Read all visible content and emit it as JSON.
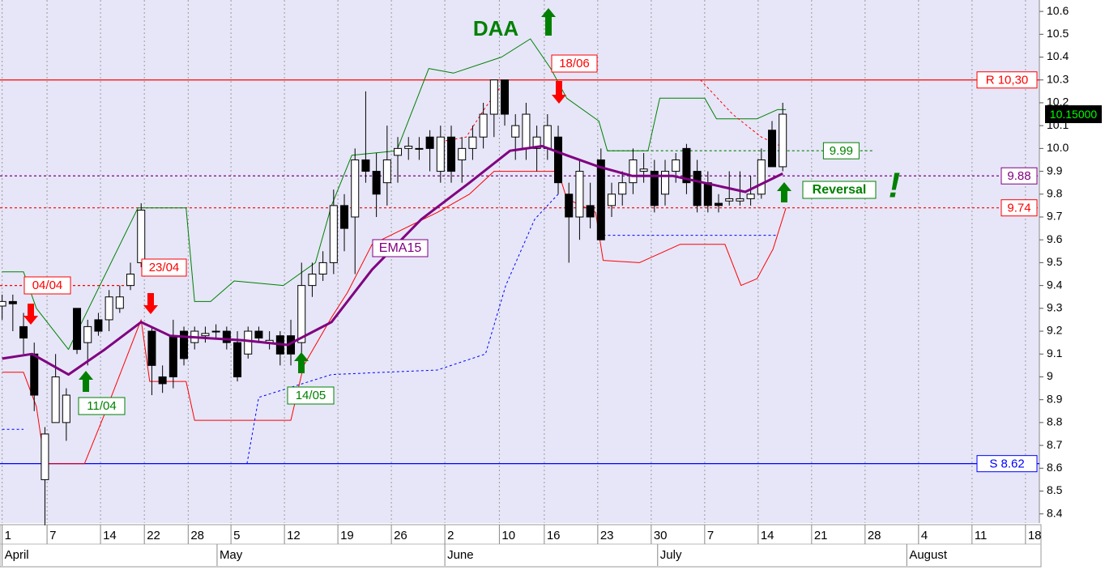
{
  "chart_data": {
    "type": "candlestick",
    "xlim": [
      -0.2,
      97
    ],
    "ylim": [
      8.36,
      10.65
    ],
    "grid": true,
    "xticks": [
      {
        "value": 0,
        "label": "1"
      },
      {
        "value": 4.2,
        "label": "7"
      },
      {
        "value": 9.2,
        "label": "14"
      },
      {
        "value": 13.3,
        "label": "22"
      },
      {
        "value": 17.4,
        "label": "28"
      },
      {
        "value": 21.4,
        "label": "5"
      },
      {
        "value": 26.4,
        "label": "12"
      },
      {
        "value": 31.4,
        "label": "19"
      },
      {
        "value": 36.4,
        "label": "26"
      },
      {
        "value": 41.4,
        "label": "2"
      },
      {
        "value": 46.5,
        "label": "10"
      },
      {
        "value": 50.7,
        "label": "16"
      },
      {
        "value": 55.7,
        "label": "23"
      },
      {
        "value": 60.7,
        "label": "30"
      },
      {
        "value": 65.7,
        "label": "7"
      },
      {
        "value": 70.7,
        "label": "14"
      },
      {
        "value": 75.7,
        "label": "21"
      },
      {
        "value": 80.7,
        "label": "28"
      },
      {
        "value": 85.7,
        "label": "4"
      },
      {
        "value": 90.7,
        "label": "11"
      },
      {
        "value": 95.7,
        "label": "18"
      }
    ],
    "months": [
      {
        "value": 0,
        "label": "April"
      },
      {
        "value": 20.1,
        "label": "May"
      },
      {
        "value": 41.4,
        "label": "June"
      },
      {
        "value": 61.3,
        "label": "July"
      },
      {
        "value": 84.6,
        "label": "August"
      }
    ],
    "yticks": [
      8.4,
      8.5,
      8.6,
      8.7,
      8.8,
      8.9,
      9.0,
      9.1,
      9.2,
      9.3,
      9.4,
      9.5,
      9.6,
      9.7,
      9.8,
      9.9,
      {
        "value": 10,
        "label": "10.0"
      },
      10.1,
      10.2,
      10.3,
      10.4,
      10.5,
      10.6
    ],
    "candles": {
      "up_color": "#ffffff",
      "down_color": "#000000",
      "x": [
        0,
        1,
        2,
        3,
        4,
        5,
        6,
        7,
        8,
        9,
        10,
        11,
        12,
        13,
        14,
        15,
        16,
        17,
        18,
        19,
        20,
        21,
        22,
        23,
        24,
        25,
        26,
        27,
        28,
        29,
        30,
        31,
        32,
        33,
        34,
        35,
        36,
        37,
        38,
        39,
        40,
        41,
        42,
        43,
        44,
        45,
        46,
        47,
        48,
        49,
        50,
        51,
        52,
        53,
        54,
        55,
        56,
        57,
        58,
        59,
        60,
        61,
        62,
        63,
        64,
        65,
        66,
        67,
        68,
        69,
        70,
        71,
        72,
        73
      ],
      "open": [
        9.31,
        9.33,
        9.22,
        9.1,
        8.55,
        8.8,
        8.8,
        9.3,
        9.15,
        9.25,
        9.25,
        9.3,
        9.4,
        9.5,
        9.2,
        9.0,
        9.18,
        9.2,
        9.15,
        9.18,
        9.2,
        9.2,
        9.15,
        9.1,
        9.2,
        9.15,
        9.18,
        9.18,
        9.15,
        9.4,
        9.45,
        9.5,
        9.75,
        9.7,
        9.95,
        9.9,
        9.85,
        9.97,
        10.0,
        10.0,
        10.05,
        9.9,
        10.05,
        9.95,
        10.0,
        10.05,
        10.15,
        10.3,
        10.05,
        10.0,
        10.0,
        10.0,
        10.05,
        9.8,
        9.7,
        9.75,
        9.95,
        9.75,
        9.8,
        9.85,
        9.9,
        9.9,
        9.8,
        9.9,
        10.0,
        9.9,
        9.85,
        9.76,
        9.77,
        9.77,
        9.78,
        9.8,
        10.08,
        9.92
      ],
      "high": [
        9.36,
        9.36,
        9.28,
        9.15,
        8.78,
        9.1,
        8.95,
        9.3,
        9.25,
        9.28,
        9.38,
        9.4,
        9.5,
        9.76,
        9.22,
        9.05,
        9.25,
        9.22,
        9.22,
        9.22,
        9.23,
        9.22,
        9.2,
        9.22,
        9.22,
        9.2,
        9.2,
        9.25,
        9.5,
        9.5,
        9.55,
        9.82,
        9.8,
        10.0,
        10.25,
        9.98,
        10.1,
        10.05,
        10.05,
        10.05,
        10.08,
        10.1,
        10.1,
        10.05,
        10.1,
        10.2,
        10.3,
        10.3,
        10.15,
        10.2,
        10.1,
        10.15,
        10.1,
        9.85,
        9.95,
        9.85,
        10.0,
        9.85,
        9.9,
        10.0,
        9.98,
        9.95,
        9.95,
        9.98,
        10.02,
        9.95,
        9.9,
        9.8,
        9.9,
        9.9,
        9.88,
        10.0,
        10.12,
        10.2
      ],
      "low": [
        9.25,
        9.2,
        9.1,
        8.85,
        8.35,
        8.8,
        8.72,
        9.1,
        9.05,
        9.18,
        9.2,
        9.28,
        9.38,
        9.48,
        8.92,
        8.93,
        8.95,
        9.05,
        9.12,
        9.15,
        9.17,
        9.12,
        8.98,
        9.08,
        9.15,
        9.12,
        9.05,
        9.05,
        9.1,
        9.35,
        9.42,
        9.45,
        9.55,
        9.45,
        9.85,
        9.7,
        9.75,
        9.85,
        9.95,
        9.95,
        9.9,
        9.85,
        9.85,
        9.85,
        9.95,
        10.0,
        10.05,
        10.1,
        9.95,
        9.95,
        9.9,
        9.95,
        9.8,
        9.5,
        9.6,
        9.65,
        9.6,
        9.7,
        9.75,
        9.8,
        9.85,
        9.72,
        9.75,
        9.85,
        9.8,
        9.72,
        9.72,
        9.72,
        9.75,
        9.75,
        9.75,
        9.78,
        9.92,
        9.9
      ],
      "close": [
        9.33,
        9.32,
        9.17,
        8.92,
        8.75,
        9.0,
        8.92,
        9.12,
        9.22,
        9.2,
        9.35,
        9.35,
        9.45,
        9.73,
        9.05,
        8.97,
        9.0,
        9.08,
        9.2,
        9.19,
        9.2,
        9.15,
        9.0,
        9.2,
        9.17,
        9.16,
        9.1,
        9.1,
        9.4,
        9.45,
        9.5,
        9.75,
        9.65,
        9.95,
        9.9,
        9.8,
        9.95,
        10.0,
        10.01,
        10.0,
        10.0,
        10.05,
        9.9,
        10.0,
        10.05,
        10.15,
        10.3,
        10.15,
        10.1,
        10.15,
        10.05,
        10.1,
        9.85,
        9.7,
        9.9,
        9.7,
        9.6,
        9.8,
        9.85,
        9.95,
        9.91,
        9.75,
        9.9,
        9.95,
        9.85,
        9.75,
        9.75,
        9.75,
        9.78,
        9.78,
        9.8,
        9.95,
        9.92,
        10.15
      ]
    },
    "series": [
      {
        "color": "#008000",
        "width": 1,
        "dash": false,
        "x": [
          0,
          2,
          3.2,
          6.2,
          12.7,
          17.2,
          18,
          19.5,
          21.7,
          26.3,
          29.3,
          30.8,
          32.7,
          36.9,
          39.9,
          42.2,
          46.7,
          49.4,
          51.3,
          52.8,
          55.8,
          56.6,
          60.4,
          61.5,
          65.7,
          66.8,
          70.6,
          72.5,
          73.3
        ],
        "values": [
          9.46,
          9.46,
          9.3,
          9.12,
          9.74,
          9.74,
          9.33,
          9.33,
          9.42,
          9.4,
          9.5,
          9.75,
          9.97,
          9.99,
          10.35,
          10.33,
          10.4,
          10.48,
          10.35,
          10.22,
          10.12,
          9.99,
          9.99,
          10.22,
          10.22,
          10.13,
          10.13,
          10.17,
          10.17
        ]
      },
      {
        "color": "#ff0000",
        "width": 1,
        "dash": false,
        "x": [
          0,
          2,
          3.2,
          4,
          7.7,
          9.6,
          13,
          13.8,
          17.2,
          18,
          27,
          28.2,
          30.8,
          32.3,
          34.6,
          40.7,
          43.7,
          46,
          52,
          52.8,
          55.5,
          56.2,
          59.6,
          63.4,
          67.6,
          69.1,
          70.6,
          72.1,
          73.3
        ],
        "values": [
          9.02,
          9.02,
          8.87,
          8.62,
          8.62,
          8.84,
          9.25,
          8.98,
          8.98,
          8.81,
          8.81,
          9.05,
          9.26,
          9.37,
          9.58,
          9.72,
          9.8,
          9.9,
          9.9,
          9.78,
          9.72,
          9.51,
          9.5,
          9.58,
          9.58,
          9.4,
          9.43,
          9.56,
          9.74
        ]
      },
      {
        "color": "#0000ff",
        "width": 1,
        "dash": true,
        "x": [
          0,
          2,
          10,
          22.9,
          24,
          30.8,
          40.7,
          45.2,
          47.1,
          49.8,
          52,
          54,
          56.2,
          72.5
        ],
        "values": [
          8.77,
          8.77,
          null,
          8.62,
          8.91,
          9.01,
          9.03,
          9.1,
          9.4,
          9.69,
          9.8,
          null,
          9.62,
          9.62
        ]
      },
      {
        "color": "#ff0000",
        "width": 1,
        "dash": true,
        "x": [
          41,
          43.4,
          45.2,
          47.1,
          48,
          65.3,
          68.3,
          71,
          73.3
        ],
        "values": [
          10.03,
          10.05,
          10.18,
          10.3,
          null,
          10.3,
          10.15,
          10.05,
          10.0
        ]
      },
      {
        "name": "EMA15",
        "color": "#800080",
        "width": 3,
        "dash": false,
        "x": [
          0,
          2.8,
          6.2,
          9.6,
          13,
          15.7,
          22.5,
          26.7,
          30.8,
          34.6,
          39.2,
          43.7,
          47.5,
          50.5,
          52.8,
          55.8,
          58.9,
          62.7,
          69.5,
          73
        ],
        "values": [
          9.08,
          9.1,
          9.01,
          9.12,
          9.24,
          9.18,
          9.16,
          9.14,
          9.24,
          9.47,
          9.69,
          9.85,
          9.99,
          10.01,
          9.97,
          9.92,
          9.88,
          9.88,
          9.81,
          9.89
        ]
      }
    ],
    "levels": [
      {
        "value": 10.3,
        "label": "R 10,30",
        "color": "#ff0000",
        "style": "solid"
      },
      {
        "value": 8.62,
        "label": "S 8.62",
        "color": "#0000ff",
        "style": "solid"
      },
      {
        "value": 9.74,
        "color": "#ff0000",
        "style": "dash"
      },
      {
        "value": 9.88,
        "color": "#800080",
        "style": "dash"
      },
      {
        "value": 9.99,
        "color": "#008000",
        "style": "dash",
        "x": [
          56.6,
          81.5
        ]
      },
      {
        "value": 9.4,
        "color": "#ff0000",
        "style": "dash",
        "x": [
          -0.2,
          12
        ]
      }
    ],
    "last_price": {
      "value": 10.15,
      "label": "10.15000"
    },
    "annotations": [
      {
        "text": "04/04",
        "color": "#ff0000"
      },
      {
        "text": "11/04",
        "color": "#008000"
      },
      {
        "text": "23/04",
        "color": "#ff0000"
      },
      {
        "text": "14/05",
        "color": "#008000"
      },
      {
        "text": "18/06",
        "color": "#ff0000"
      },
      {
        "text": "DAA",
        "color": "#008000"
      },
      {
        "text": "Reversal",
        "color": "#008000"
      },
      {
        "text": "!",
        "color": "#008000"
      }
    ]
  }
}
